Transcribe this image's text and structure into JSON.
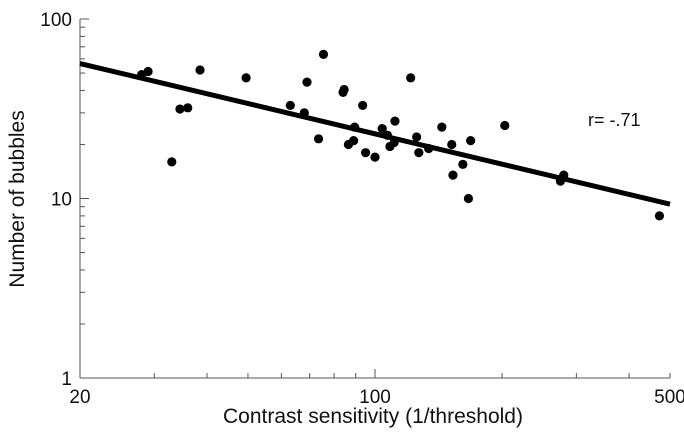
{
  "chart_data": {
    "type": "scatter",
    "title": "",
    "xlabel": "Contrast sensitivity (1/threshold)",
    "ylabel": "Number of bubbles",
    "xscale": "log",
    "yscale": "log",
    "xlim": [
      20,
      500
    ],
    "ylim": [
      1,
      100
    ],
    "x_tick_labels": [
      {
        "value": 20,
        "label": "20"
      },
      {
        "value": 100,
        "label": "100"
      },
      {
        "value": 500,
        "label": "500"
      }
    ],
    "y_tick_labels": [
      {
        "value": 1,
        "label": "1"
      },
      {
        "value": 10,
        "label": "10"
      },
      {
        "value": 100,
        "label": "100"
      }
    ],
    "grid": false,
    "annotation": "r= -.71",
    "fit_line": {
      "x": [
        20,
        500
      ],
      "y": [
        56.5,
        9.3
      ]
    },
    "series": [
      {
        "points": [
          {
            "x": 28,
            "y": 49
          },
          {
            "x": 29,
            "y": 51
          },
          {
            "x": 33,
            "y": 16
          },
          {
            "x": 34.5,
            "y": 31.5
          },
          {
            "x": 36,
            "y": 32
          },
          {
            "x": 38.5,
            "y": 52
          },
          {
            "x": 49.5,
            "y": 47
          },
          {
            "x": 63,
            "y": 33
          },
          {
            "x": 68,
            "y": 30
          },
          {
            "x": 69,
            "y": 44.5
          },
          {
            "x": 73.5,
            "y": 21.5
          },
          {
            "x": 75.5,
            "y": 63.5
          },
          {
            "x": 84,
            "y": 39
          },
          {
            "x": 84.5,
            "y": 40.5
          },
          {
            "x": 86.5,
            "y": 20
          },
          {
            "x": 89,
            "y": 21
          },
          {
            "x": 89.5,
            "y": 25
          },
          {
            "x": 93.5,
            "y": 33
          },
          {
            "x": 95,
            "y": 18
          },
          {
            "x": 100,
            "y": 17
          },
          {
            "x": 104,
            "y": 24.5
          },
          {
            "x": 107,
            "y": 22.5
          },
          {
            "x": 108.5,
            "y": 19.5
          },
          {
            "x": 111,
            "y": 20.5
          },
          {
            "x": 111.5,
            "y": 27
          },
          {
            "x": 121.5,
            "y": 47
          },
          {
            "x": 125.5,
            "y": 22
          },
          {
            "x": 127,
            "y": 18
          },
          {
            "x": 134,
            "y": 19
          },
          {
            "x": 144,
            "y": 25
          },
          {
            "x": 152,
            "y": 20
          },
          {
            "x": 153,
            "y": 13.5
          },
          {
            "x": 161.5,
            "y": 15.5
          },
          {
            "x": 166.5,
            "y": 10
          },
          {
            "x": 168.5,
            "y": 21
          },
          {
            "x": 203,
            "y": 25.5
          },
          {
            "x": 275,
            "y": 12.5
          },
          {
            "x": 280,
            "y": 13.5
          },
          {
            "x": 472,
            "y": 8
          }
        ]
      }
    ]
  }
}
